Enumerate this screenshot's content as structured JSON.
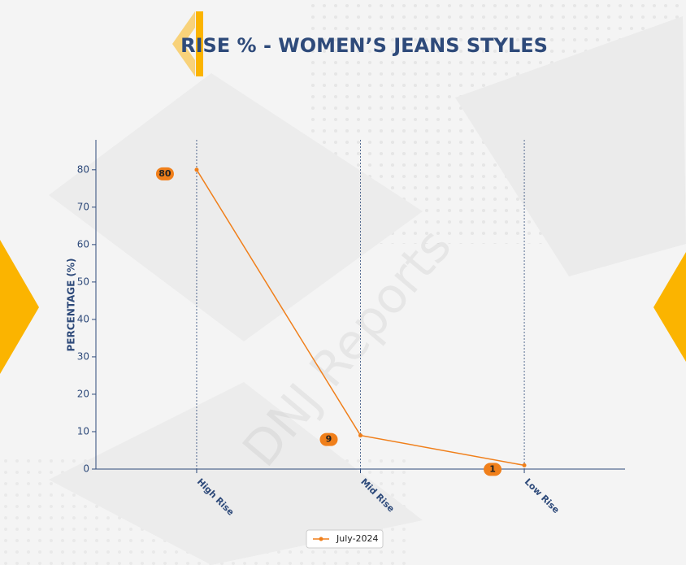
{
  "chart_data": {
    "type": "line",
    "title": "RISE % - WOMEN’S JEANS STYLES",
    "watermark": "DNJ Reports",
    "y_label": "PERCENTAGE (%)",
    "categories": [
      "High Rise",
      "Mid Rise",
      "Low Rise"
    ],
    "series": [
      {
        "name": "July-2024",
        "color": "#f07f1a",
        "values": [
          80,
          9,
          1
        ]
      }
    ],
    "ylim": [
      0,
      88
    ],
    "yticks": [
      0,
      10,
      20,
      30,
      40,
      50,
      60,
      70,
      80
    ],
    "x_grid": true
  }
}
